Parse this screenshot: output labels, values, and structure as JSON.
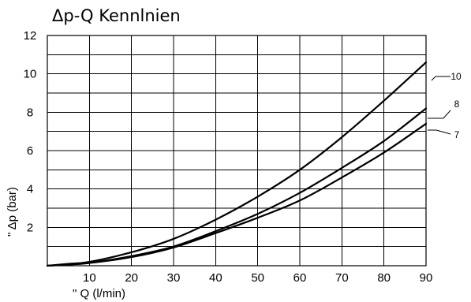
{
  "chart_data": {
    "type": "line",
    "title": "Δp-Q Kennlnien",
    "xlabel": "\" Q (l/min)",
    "ylabel": "\" Δp (bar)",
    "xlim": [
      0,
      90
    ],
    "ylim": [
      0,
      12
    ],
    "x_ticks": [
      10,
      20,
      30,
      40,
      50,
      60,
      70,
      80,
      90
    ],
    "y_ticks": [
      2,
      4,
      6,
      8,
      10,
      12
    ],
    "grid": true,
    "series": [
      {
        "name": "10",
        "x": [
          0,
          5,
          10,
          20,
          30,
          40,
          50,
          60,
          70,
          80,
          90
        ],
        "y": [
          0,
          0.1,
          0.2,
          0.7,
          1.4,
          2.4,
          3.6,
          5.0,
          6.7,
          8.6,
          10.6
        ]
      },
      {
        "name": "8",
        "x": [
          0,
          5,
          10,
          20,
          30,
          40,
          50,
          60,
          70,
          80,
          90
        ],
        "y": [
          0,
          0.07,
          0.15,
          0.5,
          1.0,
          1.8,
          2.7,
          3.8,
          5.1,
          6.5,
          8.2
        ]
      },
      {
        "name": "7",
        "x": [
          0,
          5,
          10,
          20,
          30,
          40,
          50,
          60,
          70,
          80,
          90
        ],
        "y": [
          0,
          0.06,
          0.14,
          0.45,
          0.95,
          1.7,
          2.5,
          3.4,
          4.6,
          5.9,
          7.4
        ]
      }
    ]
  }
}
